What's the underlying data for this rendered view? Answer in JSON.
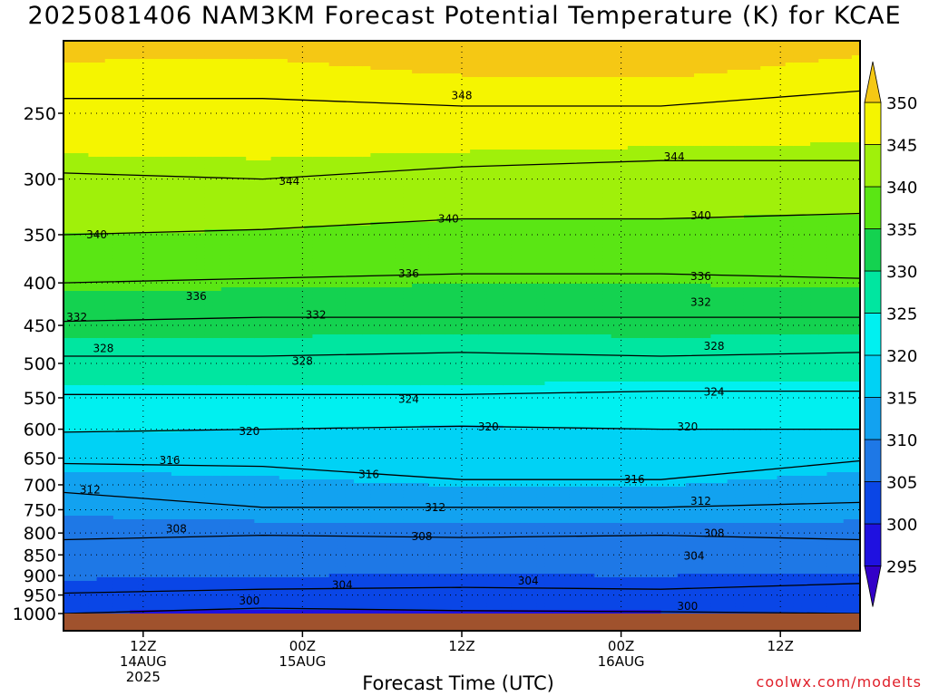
{
  "title": "2025081406 NAM3KM Forecast Potential Temperature (K) for KCAE",
  "credit": "coolwx.com/modelts",
  "colors": {
    "bands": [
      {
        "from": 290,
        "to": 295,
        "color": "#3300c8"
      },
      {
        "from": 295,
        "to": 300,
        "color": "#1f11e0"
      },
      {
        "from": 300,
        "to": 305,
        "color": "#0a46e6"
      },
      {
        "from": 305,
        "to": 310,
        "color": "#1e78e6"
      },
      {
        "from": 310,
        "to": 315,
        "color": "#12a2f0"
      },
      {
        "from": 315,
        "to": 320,
        "color": "#00d2f5"
      },
      {
        "from": 320,
        "to": 325,
        "color": "#00f0f0"
      },
      {
        "from": 325,
        "to": 330,
        "color": "#00e6a0"
      },
      {
        "from": 330,
        "to": 335,
        "color": "#14d250"
      },
      {
        "from": 335,
        "to": 340,
        "color": "#5ae614"
      },
      {
        "from": 340,
        "to": 345,
        "color": "#a0f00a"
      },
      {
        "from": 345,
        "to": 350,
        "color": "#f5f500"
      },
      {
        "from": 350,
        "to": 355,
        "color": "#f5c814"
      }
    ],
    "ground": "#a0522d",
    "contour": "#000000"
  },
  "chart_data": {
    "type": "heatmap",
    "title": "2025081406 NAM3KM Forecast Potential Temperature (K) for KCAE",
    "xlabel": "Forecast Time (UTC)",
    "ylabel": "",
    "x_unit": "forecast hour from 2025081406",
    "xlim": [
      0,
      60
    ],
    "y_axis": "pressure (hPa), decreasing upward",
    "ylim": [
      1000,
      200
    ],
    "y_ticks": [
      250,
      300,
      350,
      400,
      450,
      500,
      550,
      600,
      650,
      700,
      750,
      800,
      850,
      900,
      950,
      1000
    ],
    "x_ticks": [
      {
        "hour": 6,
        "label": [
          "12Z",
          "14AUG",
          "2025"
        ]
      },
      {
        "hour": 18,
        "label": [
          "00Z",
          "15AUG"
        ]
      },
      {
        "hour": 30,
        "label": [
          "12Z"
        ]
      },
      {
        "hour": 42,
        "label": [
          "00Z",
          "16AUG"
        ]
      },
      {
        "hour": 54,
        "label": [
          "12Z"
        ]
      }
    ],
    "grid": true,
    "colorbar": {
      "ticks": [
        295,
        300,
        305,
        310,
        315,
        320,
        325,
        330,
        335,
        340,
        345,
        350
      ]
    },
    "contour_interval": 4,
    "contour_levels_pressure": [
      {
        "theta": 300,
        "p": [
          1000,
          985,
          992,
          995,
          1000
        ]
      },
      {
        "theta": 304,
        "p": [
          945,
          935,
          930,
          935,
          920
        ]
      },
      {
        "theta": 308,
        "p": [
          815,
          805,
          810,
          805,
          815
        ]
      },
      {
        "theta": 312,
        "p": [
          715,
          745,
          745,
          745,
          735
        ]
      },
      {
        "theta": 316,
        "p": [
          660,
          665,
          690,
          690,
          655
        ]
      },
      {
        "theta": 320,
        "p": [
          605,
          600,
          595,
          600,
          600
        ]
      },
      {
        "theta": 324,
        "p": [
          545,
          545,
          545,
          540,
          540
        ]
      },
      {
        "theta": 328,
        "p": [
          490,
          490,
          485,
          490,
          485
        ]
      },
      {
        "theta": 332,
        "p": [
          445,
          440,
          440,
          440,
          440
        ]
      },
      {
        "theta": 336,
        "p": [
          400,
          395,
          390,
          390,
          395
        ]
      },
      {
        "theta": 340,
        "p": [
          350,
          345,
          335,
          335,
          330
        ]
      },
      {
        "theta": 344,
        "p": [
          295,
          300,
          290,
          285,
          285
        ]
      },
      {
        "theta": 348,
        "p": [
          240,
          240,
          245,
          245,
          235
        ]
      }
    ],
    "contour_labels": [
      {
        "text": "348",
        "hour": 30,
        "p": 238
      },
      {
        "text": "344",
        "hour": 17,
        "p": 302
      },
      {
        "text": "344",
        "hour": 46,
        "p": 282
      },
      {
        "text": "340",
        "hour": 2.5,
        "p": 350
      },
      {
        "text": "340",
        "hour": 29,
        "p": 335
      },
      {
        "text": "340",
        "hour": 48,
        "p": 332
      },
      {
        "text": "336",
        "hour": 26,
        "p": 390
      },
      {
        "text": "336",
        "hour": 10,
        "p": 415
      },
      {
        "text": "336",
        "hour": 48,
        "p": 393
      },
      {
        "text": "332",
        "hour": 1,
        "p": 440
      },
      {
        "text": "332",
        "hour": 19,
        "p": 437
      },
      {
        "text": "332",
        "hour": 48,
        "p": 422
      },
      {
        "text": "328",
        "hour": 3,
        "p": 480
      },
      {
        "text": "328",
        "hour": 18,
        "p": 497
      },
      {
        "text": "328",
        "hour": 49,
        "p": 477
      },
      {
        "text": "324",
        "hour": 26,
        "p": 552
      },
      {
        "text": "324",
        "hour": 49,
        "p": 541
      },
      {
        "text": "320",
        "hour": 14,
        "p": 604
      },
      {
        "text": "320",
        "hour": 32,
        "p": 596
      },
      {
        "text": "320",
        "hour": 47,
        "p": 596
      },
      {
        "text": "316",
        "hour": 8,
        "p": 654
      },
      {
        "text": "316",
        "hour": 23,
        "p": 680
      },
      {
        "text": "316",
        "hour": 43,
        "p": 690
      },
      {
        "text": "312",
        "hour": 2,
        "p": 710
      },
      {
        "text": "312",
        "hour": 28,
        "p": 745
      },
      {
        "text": "312",
        "hour": 48,
        "p": 732
      },
      {
        "text": "308",
        "hour": 8.5,
        "p": 791
      },
      {
        "text": "308",
        "hour": 27,
        "p": 808
      },
      {
        "text": "308",
        "hour": 49,
        "p": 801
      },
      {
        "text": "304",
        "hour": 21,
        "p": 924
      },
      {
        "text": "304",
        "hour": 35,
        "p": 913
      },
      {
        "text": "304",
        "hour": 47.5,
        "p": 853
      },
      {
        "text": "300",
        "hour": 14,
        "p": 965
      },
      {
        "text": "300",
        "hour": 47,
        "p": 1000
      }
    ]
  }
}
